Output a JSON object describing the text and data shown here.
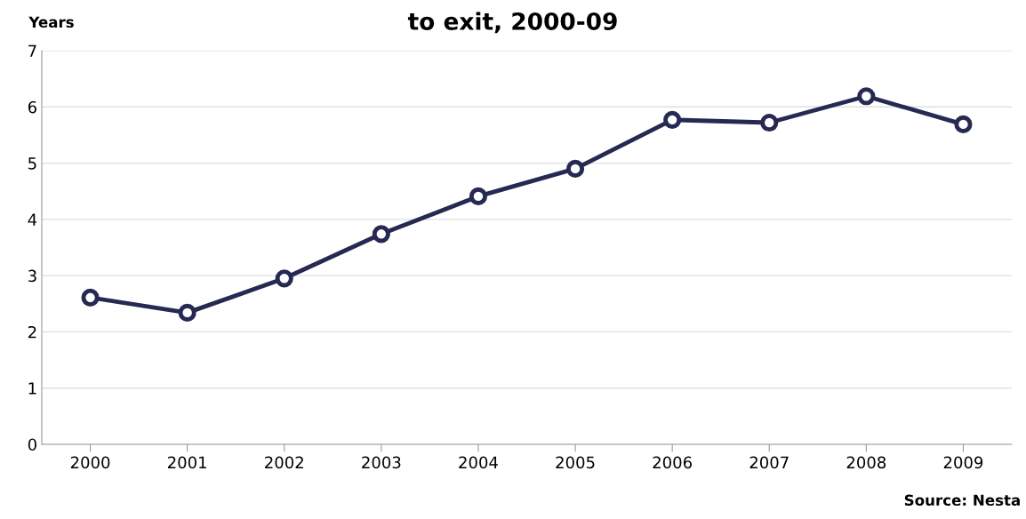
{
  "chart_data": {
    "type": "line",
    "title": "to exit, 2000-09",
    "ylabel": "Years",
    "categories": [
      "2000",
      "2001",
      "2002",
      "2003",
      "2004",
      "2005",
      "2006",
      "2007",
      "2008",
      "2009"
    ],
    "series": [
      {
        "color": "#262a52",
        "values": [
          2.61,
          2.34,
          2.95,
          3.74,
          4.41,
          4.9,
          5.77,
          5.72,
          6.19,
          5.69
        ]
      }
    ],
    "ylim": [
      0,
      7
    ],
    "yticks": [
      0,
      1,
      2,
      3,
      4,
      5,
      6,
      7
    ],
    "grid": "y",
    "marker": "circle",
    "line_style": "solid",
    "annotations": [
      "Source: Nesta"
    ]
  }
}
